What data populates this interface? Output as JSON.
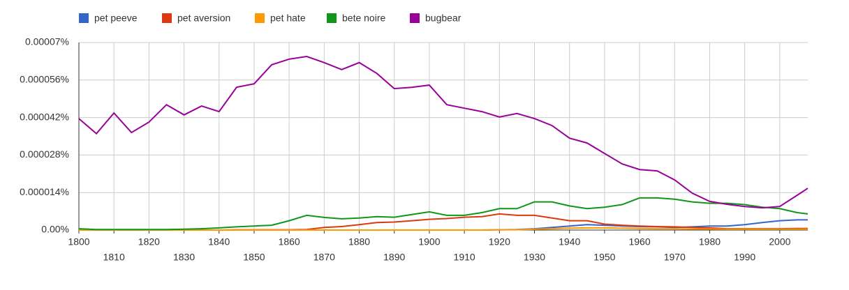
{
  "chart_data": {
    "type": "line",
    "x": [
      1800,
      1805,
      1810,
      1815,
      1820,
      1825,
      1830,
      1835,
      1840,
      1845,
      1850,
      1855,
      1860,
      1865,
      1870,
      1875,
      1880,
      1885,
      1890,
      1895,
      1900,
      1905,
      1910,
      1915,
      1920,
      1925,
      1930,
      1935,
      1940,
      1945,
      1950,
      1955,
      1960,
      1965,
      1970,
      1975,
      1980,
      1985,
      1990,
      1995,
      2000,
      2005,
      2008
    ],
    "series": [
      {
        "name": "pet peeve",
        "color": "#3366cc",
        "values": [
          0,
          0,
          0,
          0,
          0,
          0,
          0,
          0,
          0,
          0,
          0,
          0,
          0,
          0,
          0,
          0,
          0,
          0,
          0,
          0,
          0,
          0,
          0,
          0,
          1e-07,
          2e-07,
          5e-07,
          1e-06,
          1.5e-06,
          2e-06,
          1.8e-06,
          1.5e-06,
          1.3e-06,
          1.2e-06,
          1e-06,
          1.2e-06,
          1.5e-06,
          1.5e-06,
          2e-06,
          2.8e-06,
          3.5e-06,
          3.8e-06,
          3.8e-06
        ]
      },
      {
        "name": "pet aversion",
        "color": "#dc3912",
        "values": [
          0,
          0,
          0,
          0,
          0,
          0,
          0,
          0,
          0,
          1e-07,
          1e-07,
          1e-07,
          1e-07,
          2e-07,
          1e-06,
          1.3e-06,
          2e-06,
          2.8e-06,
          3e-06,
          3.5e-06,
          4e-06,
          4.3e-06,
          4.8e-06,
          5e-06,
          6e-06,
          5.5e-06,
          5.5e-06,
          4.5e-06,
          3.5e-06,
          3.5e-06,
          2.2e-06,
          1.8e-06,
          1.5e-06,
          1.3e-06,
          1.2e-06,
          1e-06,
          8e-07,
          5e-07,
          5e-07,
          5e-07,
          5e-07,
          6e-07,
          6e-07
        ]
      },
      {
        "name": "pet hate",
        "color": "#ff9900",
        "values": [
          0,
          0,
          0,
          0,
          0,
          0,
          0,
          0,
          0,
          0,
          0,
          0,
          0,
          0,
          0,
          0,
          0,
          0,
          0,
          0,
          0,
          0,
          0,
          0,
          1e-07,
          1e-07,
          3e-07,
          5e-07,
          7e-07,
          8e-07,
          8e-07,
          7e-07,
          6e-07,
          5e-07,
          5e-07,
          4e-07,
          4e-07,
          3e-07,
          3e-07,
          3e-07,
          3e-07,
          3e-07,
          3e-07
        ]
      },
      {
        "name": "bete noire",
        "color": "#109618",
        "values": [
          5e-07,
          2e-07,
          2e-07,
          2e-07,
          2e-07,
          2e-07,
          3e-07,
          5e-07,
          8e-07,
          1.2e-06,
          1.5e-06,
          1.8e-06,
          3.5e-06,
          5.5e-06,
          4.7e-06,
          4.2e-06,
          4.5e-06,
          5e-06,
          4.8e-06,
          5.8e-06,
          6.8e-06,
          5.5e-06,
          5.5e-06,
          6.5e-06,
          8e-06,
          8e-06,
          1.05e-05,
          1.05e-05,
          9e-06,
          8e-06,
          8.5e-06,
          9.5e-06,
          1.2e-05,
          1.2e-05,
          1.15e-05,
          1.05e-05,
          1e-05,
          1e-05,
          9.5e-06,
          8.5e-06,
          8e-06,
          6.5e-06,
          6e-06
        ]
      },
      {
        "name": "bugbear",
        "color": "#990099",
        "values": [
          4.16e-05,
          3.6e-05,
          4.37e-05,
          3.64e-05,
          4.03e-05,
          4.68e-05,
          4.3e-05,
          4.63e-05,
          4.42e-05,
          5.33e-05,
          5.46e-05,
          6.17e-05,
          6.38e-05,
          6.48e-05,
          6.25e-05,
          5.99e-05,
          6.25e-05,
          5.85e-05,
          5.28e-05,
          5.33e-05,
          5.41e-05,
          4.68e-05,
          4.55e-05,
          4.42e-05,
          4.22e-05,
          4.35e-05,
          4.16e-05,
          3.9e-05,
          3.43e-05,
          3.25e-05,
          2.86e-05,
          2.47e-05,
          2.26e-05,
          2.21e-05,
          1.87e-05,
          1.38e-05,
          1.07e-05,
          9.6e-06,
          8.8e-06,
          8.3e-06,
          8.8e-06,
          1.3e-05,
          1.56e-05
        ]
      }
    ],
    "xlim": [
      1800,
      2008
    ],
    "xticks": [
      1800,
      1810,
      1820,
      1830,
      1840,
      1850,
      1860,
      1870,
      1880,
      1890,
      1900,
      1910,
      1920,
      1930,
      1940,
      1950,
      1960,
      1970,
      1980,
      1990,
      2000
    ],
    "ylim": [
      0,
      7e-05
    ],
    "yticks": [
      {
        "value": 0,
        "label": "0.00%"
      },
      {
        "value": 1.4e-05,
        "label": "0.000014%"
      },
      {
        "value": 2.8e-05,
        "label": "0.000028%"
      },
      {
        "value": 4.2e-05,
        "label": "0.000042%"
      },
      {
        "value": 5.6e-05,
        "label": "0.000056%"
      },
      {
        "value": 7e-05,
        "label": "0.00007%"
      }
    ],
    "grid": true
  }
}
